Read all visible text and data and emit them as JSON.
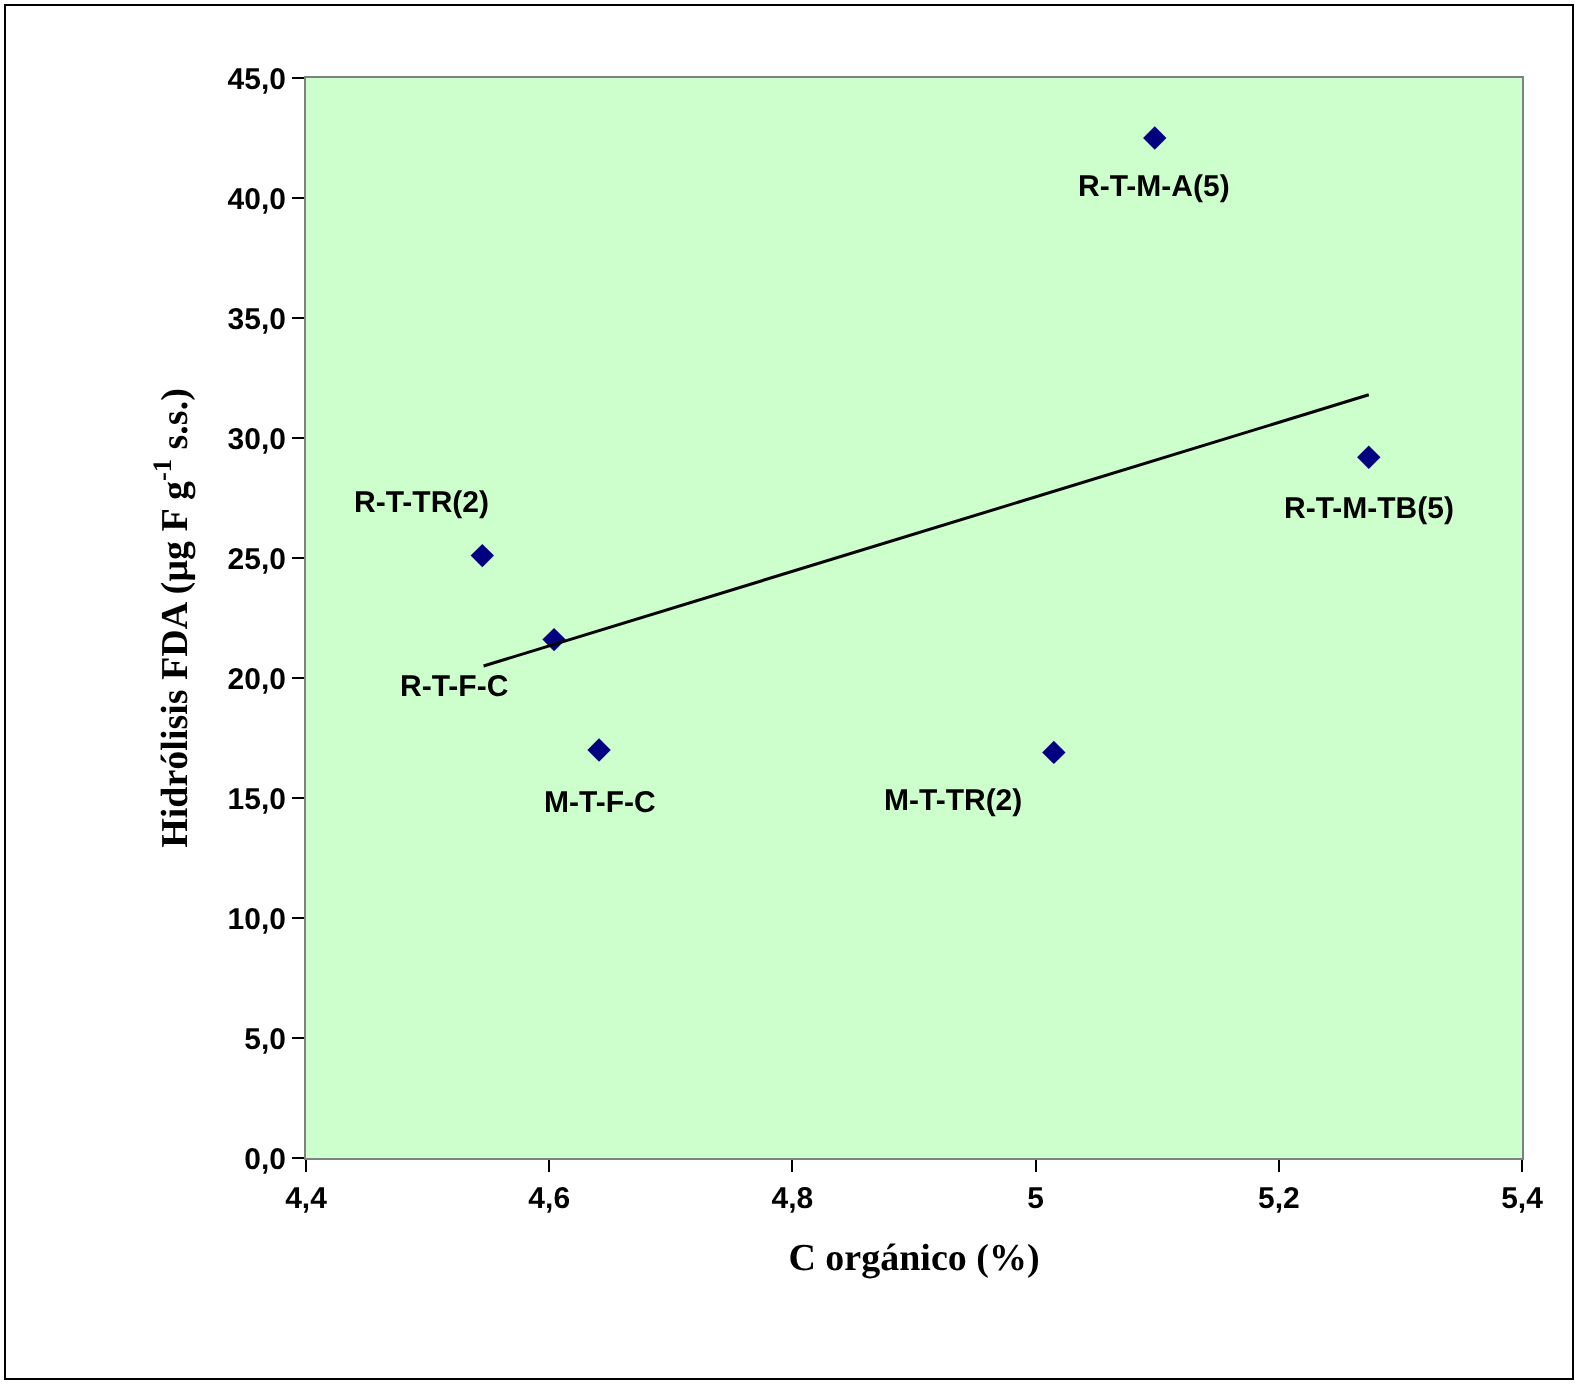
{
  "chart_data": {
    "type": "scatter",
    "xlabel": "C orgánico (%)",
    "ylabel": "Hidrólisis FDA (µg F g$^{-1}$ s.s.)",
    "xlim": [
      4.4,
      5.4
    ],
    "xticks": [
      {
        "value": 4.4,
        "label": "4,4"
      },
      {
        "value": 4.6,
        "label": "4,6"
      },
      {
        "value": 4.8,
        "label": "4,8"
      },
      5,
      {
        "value": 5.2,
        "label": "5,2"
      },
      {
        "value": 5.4,
        "label": "5,4"
      }
    ],
    "ylim": [
      0,
      45
    ],
    "yticks": [
      {
        "value": 0,
        "label": "0,0"
      },
      {
        "value": 5,
        "label": "5,0"
      },
      {
        "value": 10,
        "label": "10,0"
      },
      {
        "value": 15,
        "label": "15,0"
      },
      {
        "value": 20,
        "label": "20,0"
      },
      {
        "value": 25,
        "label": "25,0"
      },
      {
        "value": 30,
        "label": "30,0"
      },
      {
        "value": 35,
        "label": "35,0"
      },
      {
        "value": 40,
        "label": "40,0"
      },
      {
        "value": 45,
        "label": "45,0"
      }
    ],
    "series": [
      {
        "color": "#000080",
        "x": [
          4.545,
          4.604,
          4.641,
          5.015,
          5.098,
          5.274
        ],
        "values": [
          25.1,
          21.6,
          17.0,
          16.9,
          42.5,
          29.2
        ]
      },
      {
        "type": "line",
        "marker": "none",
        "color": "#000000",
        "x": [
          4.546,
          5.274
        ],
        "values": [
          20.5,
          31.8
        ]
      }
    ],
    "marker": "diamond",
    "grid": false,
    "annotations": [
      {
        "text": "R-T-TR(2)",
        "x": 4.545,
        "y": 25.1
      },
      {
        "text": "R-T-F-C",
        "x": 4.604,
        "y": 21.6
      },
      {
        "text": "M-T-F-C",
        "x": 4.641,
        "y": 17.0
      },
      {
        "text": "M-T-TR(2)",
        "x": 5.015,
        "y": 16.9
      },
      {
        "text": "R-T-M-A(5)",
        "x": 5.098,
        "y": 42.5
      },
      {
        "text": "R-T-M-TB(5)",
        "x": 5.274,
        "y": 29.2
      }
    ]
  }
}
